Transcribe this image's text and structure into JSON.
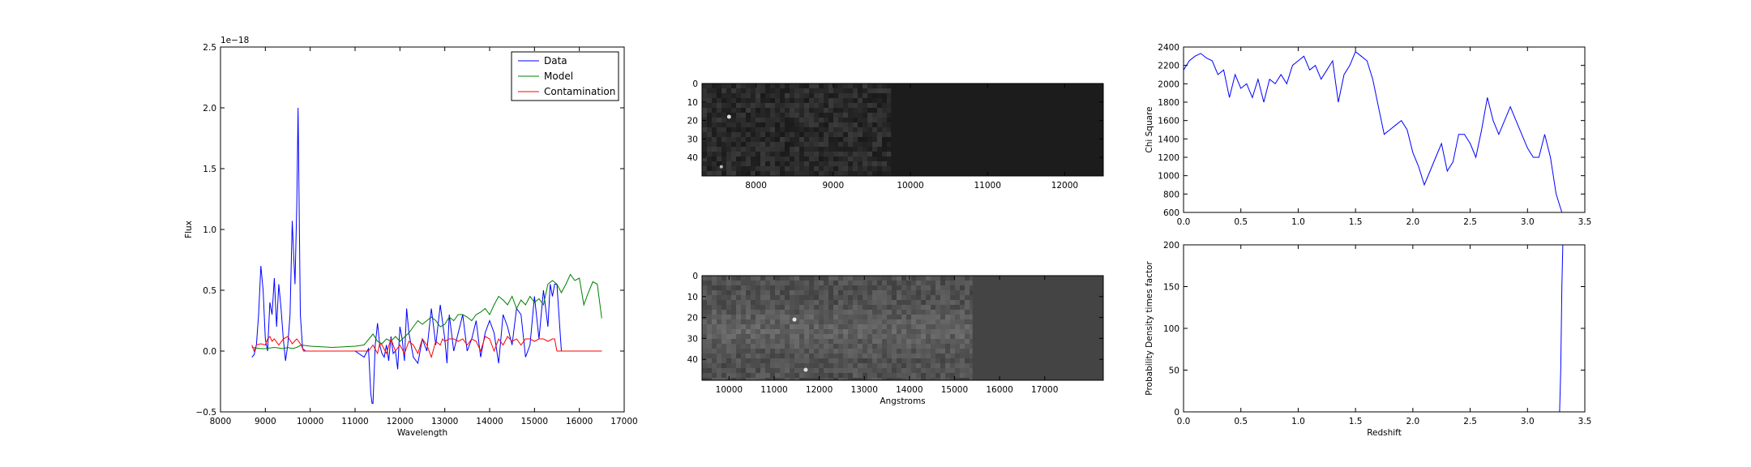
{
  "chart_data": [
    {
      "type": "line",
      "id": "spectrum",
      "xlabel": "Wavelength",
      "ylabel": "Flux",
      "y_offset_text": "1e−18",
      "xlim": [
        8000,
        17000
      ],
      "ylim": [
        -0.5,
        2.5
      ],
      "xticks": [
        "8000",
        "9000",
        "10000",
        "11000",
        "12000",
        "13000",
        "14000",
        "15000",
        "16000",
        "17000"
      ],
      "yticks": [
        "−0.5",
        "0.0",
        "0.5",
        "1.0",
        "1.5",
        "2.0",
        "2.5"
      ],
      "legend": {
        "position": "top-right",
        "entries": [
          "Data",
          "Model",
          "Contamination"
        ]
      },
      "series": [
        {
          "name": "Data",
          "color": "#0000ff",
          "x": [
            8700,
            8750,
            8800,
            8850,
            8900,
            8950,
            9000,
            9050,
            9100,
            9150,
            9200,
            9250,
            9300,
            9350,
            9400,
            9450,
            9500,
            9550,
            9600,
            9630,
            9660,
            9700,
            9730,
            9780,
            9830,
            9900,
            10000,
            10500,
            10800,
            11000,
            11200,
            11300,
            11350,
            11380,
            11400,
            11450,
            11500,
            11550,
            11600,
            11650,
            11700,
            11750,
            11800,
            11850,
            11900,
            11950,
            12000,
            12050,
            12100,
            12150,
            12200,
            12300,
            12400,
            12500,
            12600,
            12700,
            12800,
            12900,
            13000,
            13050,
            13100,
            13200,
            13300,
            13400,
            13500,
            13600,
            13700,
            13800,
            13900,
            14000,
            14100,
            14200,
            14300,
            14400,
            14500,
            14600,
            14700,
            14800,
            14900,
            15000,
            15100,
            15200,
            15300,
            15350,
            15400,
            15450,
            15500,
            15600,
            16000,
            16500
          ],
          "y": [
            -0.05,
            -0.03,
            0.05,
            0.3,
            0.7,
            0.5,
            0.1,
            0.0,
            0.4,
            0.3,
            0.6,
            0.2,
            0.55,
            0.35,
            0.1,
            -0.08,
            0.05,
            0.3,
            1.07,
            0.8,
            0.55,
            1.2,
            2.0,
            0.3,
            0.02,
            0.0,
            0.0,
            0.0,
            0.0,
            0.0,
            -0.05,
            0.02,
            -0.35,
            -0.43,
            -0.43,
            0.05,
            0.23,
            0.05,
            -0.02,
            -0.05,
            0.05,
            -0.08,
            0.12,
            -0.02,
            0.0,
            -0.15,
            0.2,
            0.1,
            -0.08,
            0.35,
            0.15,
            -0.05,
            -0.1,
            0.1,
            0.0,
            0.35,
            0.05,
            0.38,
            0.1,
            -0.1,
            0.3,
            0.0,
            0.15,
            0.3,
            0.0,
            0.1,
            0.25,
            -0.05,
            0.15,
            0.25,
            0.15,
            -0.1,
            0.3,
            0.2,
            0.05,
            0.35,
            0.3,
            -0.05,
            0.05,
            0.45,
            0.1,
            0.5,
            0.2,
            0.55,
            0.45,
            0.55,
            0.55,
            0.0,
            0.0,
            0.0
          ]
        },
        {
          "name": "Model",
          "color": "#008000",
          "x": [
            8700,
            8900,
            9000,
            9200,
            9400,
            9500,
            9600,
            9700,
            9800,
            10000,
            10500,
            11000,
            11200,
            11400,
            11500,
            11600,
            11700,
            11800,
            11900,
            12000,
            12200,
            12300,
            12400,
            12500,
            12600,
            12700,
            12800,
            12900,
            13000,
            13100,
            13200,
            13300,
            13400,
            13500,
            13600,
            13700,
            13800,
            13900,
            14000,
            14100,
            14200,
            14300,
            14400,
            14500,
            14600,
            14700,
            14800,
            14900,
            15000,
            15100,
            15200,
            15300,
            15400,
            15500,
            15600,
            15700,
            15800,
            15900,
            16000,
            16100,
            16200,
            16300,
            16400,
            16500
          ],
          "y": [
            0.03,
            0.02,
            0.02,
            0.03,
            0.02,
            0.03,
            0.02,
            0.03,
            0.05,
            0.04,
            0.03,
            0.04,
            0.05,
            0.14,
            0.08,
            0.06,
            0.1,
            0.08,
            0.12,
            0.08,
            0.15,
            0.2,
            0.25,
            0.22,
            0.25,
            0.28,
            0.25,
            0.2,
            0.22,
            0.28,
            0.25,
            0.3,
            0.3,
            0.28,
            0.25,
            0.3,
            0.32,
            0.35,
            0.3,
            0.38,
            0.45,
            0.42,
            0.38,
            0.45,
            0.35,
            0.42,
            0.38,
            0.45,
            0.4,
            0.43,
            0.38,
            0.55,
            0.58,
            0.55,
            0.48,
            0.55,
            0.63,
            0.58,
            0.6,
            0.38,
            0.48,
            0.57,
            0.55,
            0.27
          ]
        },
        {
          "name": "Contamination",
          "color": "#ff0000",
          "x": [
            8700,
            8750,
            8800,
            8900,
            9000,
            9050,
            9100,
            9150,
            9200,
            9300,
            9400,
            9500,
            9600,
            9700,
            9800,
            9850,
            9900,
            11000,
            11300,
            11400,
            11500,
            11550,
            11600,
            11700,
            11800,
            11900,
            12000,
            12100,
            12200,
            12300,
            12400,
            12500,
            12600,
            12700,
            12800,
            12900,
            12950,
            13000,
            13100,
            13200,
            13300,
            13400,
            13500,
            13600,
            13700,
            13800,
            13900,
            14000,
            14100,
            14200,
            14300,
            14400,
            14500,
            14600,
            14700,
            14800,
            14900,
            15000,
            15100,
            15200,
            15300,
            15400,
            15450,
            15500,
            16500
          ],
          "y": [
            0.05,
            0.0,
            0.05,
            0.06,
            0.05,
            0.1,
            0.12,
            0.08,
            0.1,
            0.05,
            0.1,
            0.12,
            0.06,
            0.1,
            0.05,
            0.0,
            0.0,
            0.0,
            0.0,
            0.05,
            -0.02,
            0.06,
            0.05,
            -0.02,
            0.1,
            0.0,
            0.05,
            -0.02,
            0.08,
            0.05,
            -0.02,
            0.1,
            0.05,
            -0.05,
            0.08,
            0.05,
            0.1,
            0.08,
            0.1,
            0.1,
            0.08,
            0.1,
            0.05,
            0.1,
            0.08,
            0.0,
            0.12,
            0.1,
            0.0,
            0.1,
            0.05,
            0.12,
            0.08,
            0.1,
            0.05,
            0.1,
            0.1,
            0.08,
            0.1,
            0.1,
            0.08,
            0.1,
            0.1,
            0.0,
            0.0
          ]
        }
      ]
    },
    {
      "type": "heatmap",
      "id": "image-top",
      "xlim": [
        7300,
        12500
      ],
      "ylim": [
        50,
        0
      ],
      "xticks": [
        "8000",
        "9000",
        "10000",
        "11000",
        "12000"
      ],
      "yticks": [
        "0",
        "10",
        "20",
        "30",
        "40"
      ],
      "colormap": "gray",
      "data_extent_x_max": 9750
    },
    {
      "type": "heatmap",
      "id": "image-bottom",
      "xlabel": "Angstroms",
      "xlim": [
        9400,
        18300
      ],
      "ylim": [
        50,
        0
      ],
      "xticks": [
        "10000",
        "11000",
        "12000",
        "13000",
        "14000",
        "15000",
        "16000",
        "17000"
      ],
      "yticks": [
        "0",
        "10",
        "20",
        "30",
        "40"
      ],
      "colormap": "gray",
      "data_extent_x_max": 15400
    },
    {
      "type": "line",
      "id": "chisq",
      "ylabel": "Chi Square",
      "xlim": [
        0.0,
        3.5
      ],
      "ylim": [
        600,
        2400
      ],
      "xticks": [
        "0.0",
        "0.5",
        "1.0",
        "1.5",
        "2.0",
        "2.5",
        "3.0",
        "3.5"
      ],
      "yticks": [
        "600",
        "800",
        "1000",
        "1200",
        "1400",
        "1600",
        "1800",
        "2000",
        "2200",
        "2400"
      ],
      "series": [
        {
          "color": "#0000ff",
          "x": [
            0.0,
            0.05,
            0.1,
            0.15,
            0.2,
            0.25,
            0.3,
            0.35,
            0.4,
            0.45,
            0.5,
            0.55,
            0.6,
            0.65,
            0.7,
            0.75,
            0.8,
            0.85,
            0.9,
            0.95,
            1.0,
            1.05,
            1.1,
            1.15,
            1.2,
            1.25,
            1.3,
            1.35,
            1.4,
            1.45,
            1.5,
            1.55,
            1.6,
            1.65,
            1.7,
            1.75,
            1.8,
            1.85,
            1.9,
            1.95,
            2.0,
            2.05,
            2.1,
            2.15,
            2.2,
            2.25,
            2.3,
            2.35,
            2.4,
            2.45,
            2.5,
            2.55,
            2.6,
            2.65,
            2.7,
            2.75,
            2.8,
            2.85,
            2.9,
            2.95,
            3.0,
            3.05,
            3.1,
            3.15,
            3.2,
            3.25,
            3.3
          ],
          "y": [
            2150,
            2250,
            2300,
            2330,
            2280,
            2250,
            2100,
            2150,
            1850,
            2100,
            1950,
            2000,
            1850,
            2050,
            1800,
            2050,
            2000,
            2100,
            2000,
            2200,
            2250,
            2300,
            2150,
            2200,
            2050,
            2150,
            2250,
            1800,
            2100,
            2200,
            2350,
            2300,
            2250,
            2050,
            1750,
            1450,
            1500,
            1550,
            1600,
            1500,
            1250,
            1100,
            900,
            1050,
            1200,
            1350,
            1050,
            1150,
            1450,
            1450,
            1350,
            1200,
            1500,
            1850,
            1600,
            1450,
            1600,
            1750,
            1600,
            1450,
            1300,
            1200,
            1200,
            1450,
            1200,
            800,
            600
          ]
        }
      ]
    },
    {
      "type": "line",
      "id": "pdf",
      "xlabel": "Redshift",
      "ylabel": "Probability Density times factor",
      "xlim": [
        0.0,
        3.5
      ],
      "ylim": [
        0,
        200
      ],
      "xticks": [
        "0.0",
        "0.5",
        "1.0",
        "1.5",
        "2.0",
        "2.5",
        "3.0",
        "3.5"
      ],
      "yticks": [
        "0",
        "50",
        "100",
        "150",
        "200"
      ],
      "series": [
        {
          "color": "#0000ff",
          "x": [
            0.0,
            3.25,
            3.27,
            3.28,
            3.29,
            3.3,
            3.31
          ],
          "y": [
            0,
            0,
            0,
            0,
            50,
            150,
            210
          ]
        }
      ]
    }
  ]
}
